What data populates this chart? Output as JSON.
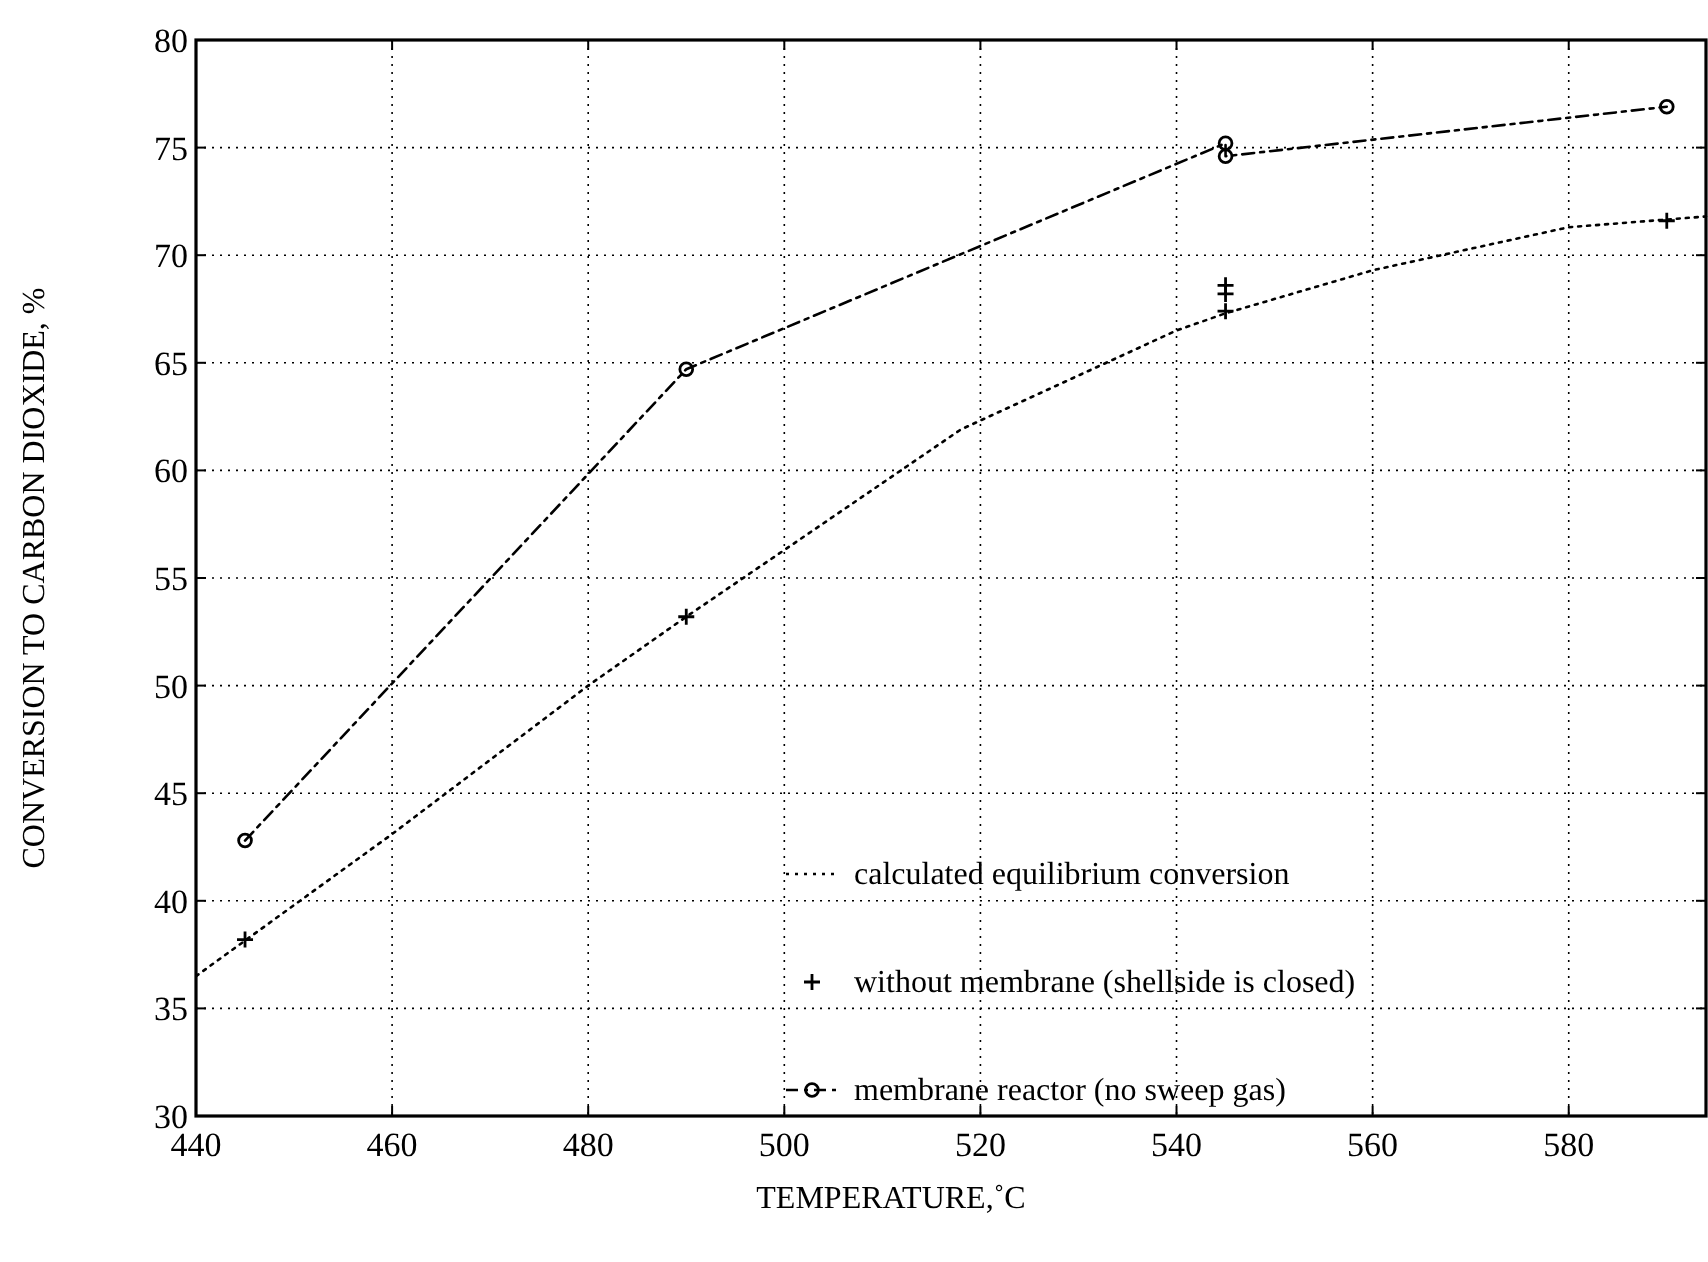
{
  "chart_data": {
    "type": "line",
    "xlabel": "TEMPERATURE,˚C",
    "ylabel": "CONVERSION TO CARBON DIOXIDE, %",
    "xlim": [
      440,
      594
    ],
    "xticks": [
      440,
      460,
      480,
      500,
      520,
      540,
      560,
      580
    ],
    "ylim": [
      30,
      80
    ],
    "yticks": [
      30,
      35,
      40,
      45,
      50,
      55,
      60,
      65,
      70,
      75,
      80
    ],
    "grid": true,
    "legend": "bottom right",
    "series": [
      {
        "name": "calculated equilibrium conversion",
        "color": "#000000",
        "line_style": "dotted",
        "marker": "none",
        "x": [
          440,
          460,
          480,
          490,
          500,
          518,
          540,
          545,
          560,
          580,
          594
        ],
        "values": [
          36.5,
          43.1,
          50,
          53.2,
          56.3,
          61.9,
          66.5,
          67.3,
          69.3,
          71.3,
          71.8
        ]
      },
      {
        "name": "without membrane (shellside is closed)",
        "type": "scatter",
        "color": "#000000",
        "marker": "cross",
        "x": [
          445,
          490,
          545,
          545,
          545,
          590
        ],
        "values": [
          38.2,
          53.2,
          68.6,
          68.2,
          67.4,
          71.6
        ]
      },
      {
        "name": "membrane reactor (no sweep gas)",
        "color": "#000000",
        "line_style": "dashed",
        "marker": "circle",
        "x": [
          445,
          490,
          545,
          545,
          590
        ],
        "values": [
          42.8,
          64.7,
          75.2,
          74.6,
          76.9
        ]
      }
    ]
  }
}
